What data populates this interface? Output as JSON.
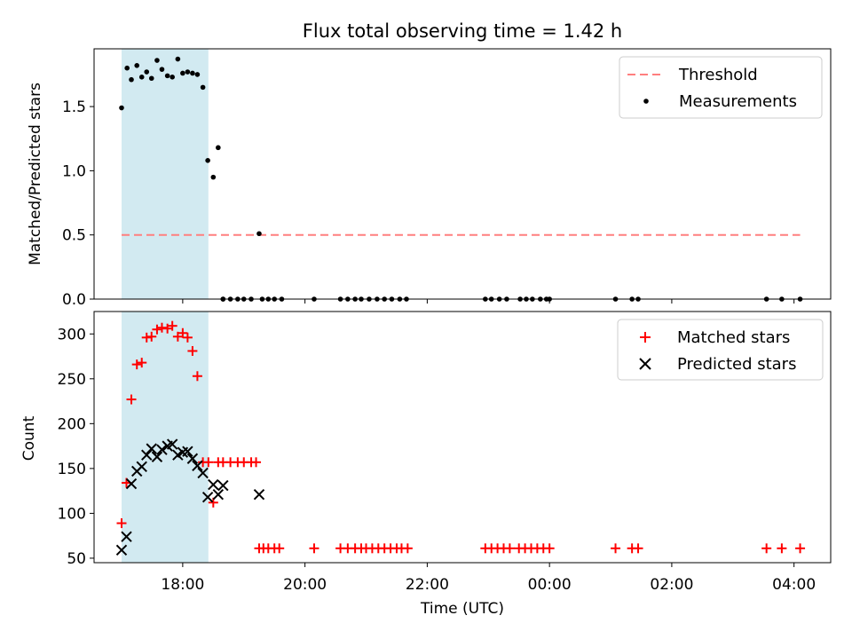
{
  "chart_data": [
    {
      "type": "scatter",
      "title": "Flux total observing time = 1.42 h",
      "ylabel": "Matched/Predicted stars",
      "xlabel": "",
      "ylim": [
        0,
        1.95
      ],
      "xlim": [
        16.55,
        28.6
      ],
      "x_unit": "hours UTC from 00:00 of first night (values > 24 are after midnight)",
      "yticks": [
        "0.0",
        "0.5",
        "1.0",
        "1.5"
      ],
      "highlight_span": {
        "from": 17.0,
        "to": 18.42,
        "color": "#add8e6"
      },
      "legend": {
        "placement": "top-right",
        "entries": [
          "Threshold",
          "Measurements"
        ]
      },
      "threshold": {
        "name": "Threshold",
        "value": 0.5,
        "x_from": 17.0,
        "x_to": 28.1,
        "color": "#ff7f7f",
        "style": "dashed"
      },
      "series": [
        {
          "name": "Measurements",
          "color": "#000000",
          "marker": "dot",
          "x": [
            17.0,
            17.09,
            17.16,
            17.25,
            17.33,
            17.41,
            17.49,
            17.58,
            17.66,
            17.75,
            17.83,
            17.92,
            18.0,
            18.08,
            18.16,
            18.24,
            18.33,
            18.41,
            18.5,
            18.58,
            18.66,
            19.25,
            18.66,
            18.78,
            18.9,
            19.0,
            19.12,
            19.3,
            19.4,
            19.5,
            19.62,
            20.15,
            20.58,
            20.7,
            20.82,
            20.92,
            21.05,
            21.18,
            21.3,
            21.42,
            21.55,
            21.66,
            22.95,
            23.05,
            23.18,
            23.3,
            23.52,
            23.62,
            23.72,
            23.85,
            23.95,
            24.0,
            25.08,
            25.35,
            25.45,
            27.55,
            27.8,
            28.1
          ],
          "y": [
            1.49,
            1.8,
            1.71,
            1.82,
            1.73,
            1.77,
            1.72,
            1.86,
            1.79,
            1.74,
            1.73,
            1.87,
            1.76,
            1.77,
            1.76,
            1.75,
            1.65,
            1.08,
            0.95,
            1.18,
            0.0,
            0.51,
            0.0,
            0.0,
            0.0,
            0.0,
            0.0,
            0.0,
            0.0,
            0.0,
            0.0,
            0.0,
            0.0,
            0.0,
            0.0,
            0.0,
            0.0,
            0.0,
            0.0,
            0.0,
            0.0,
            0.0,
            0.0,
            0.0,
            0.0,
            0.0,
            0.0,
            0.0,
            0.0,
            0.0,
            0.0,
            0.0,
            0.0,
            0.0,
            0.0,
            0.0,
            0.0,
            0.0
          ]
        }
      ]
    },
    {
      "type": "scatter",
      "title": "",
      "ylabel": "Count",
      "xlabel": "Time (UTC)",
      "ylim": [
        45,
        325
      ],
      "xlim": [
        16.55,
        28.6
      ],
      "yticks": [
        "50",
        "100",
        "150",
        "200",
        "250",
        "300"
      ],
      "xticks": [
        "18:00",
        "20:00",
        "22:00",
        "00:00",
        "02:00",
        "04:00"
      ],
      "highlight_span": {
        "from": 17.0,
        "to": 18.42,
        "color": "#add8e6"
      },
      "legend": {
        "placement": "top-right",
        "entries": [
          "Matched stars",
          "Predicted stars"
        ]
      },
      "series": [
        {
          "name": "Matched stars",
          "color": "#ff0000",
          "marker": "plus",
          "x": [
            17.0,
            17.08,
            17.16,
            17.25,
            17.33,
            17.41,
            17.49,
            17.58,
            17.66,
            17.75,
            17.83,
            17.92,
            18.0,
            18.08,
            18.16,
            18.24,
            18.33,
            18.42,
            18.5,
            18.58,
            18.66,
            18.78,
            18.9,
            19.0,
            19.12,
            19.2,
            19.25,
            19.32,
            19.4,
            19.5,
            19.58,
            20.15,
            20.58,
            20.7,
            20.82,
            20.92,
            21.0,
            21.1,
            21.2,
            21.3,
            21.4,
            21.5,
            21.58,
            21.68,
            22.95,
            23.05,
            23.15,
            23.25,
            23.35,
            23.5,
            23.6,
            23.7,
            23.8,
            23.9,
            24.0,
            25.08,
            25.35,
            25.45,
            27.55,
            27.8,
            28.1
          ],
          "y": [
            89,
            134,
            227,
            266,
            268,
            296,
            297,
            305,
            307,
            306,
            309,
            297,
            301,
            296,
            281,
            253,
            157,
            157,
            112,
            157,
            157,
            157,
            157,
            157,
            157,
            157,
            61,
            61,
            61,
            61,
            61,
            61,
            61,
            61,
            61,
            61,
            61,
            61,
            61,
            61,
            61,
            61,
            61,
            61,
            61,
            61,
            61,
            61,
            61,
            61,
            61,
            61,
            61,
            61,
            61,
            61,
            61,
            61,
            61,
            61,
            61
          ]
        },
        {
          "name": "Predicted stars",
          "color": "#000000",
          "marker": "x",
          "x": [
            17.0,
            17.08,
            17.16,
            17.25,
            17.33,
            17.41,
            17.49,
            17.58,
            17.66,
            17.75,
            17.83,
            17.92,
            18.0,
            18.08,
            18.16,
            18.24,
            18.33,
            18.41,
            18.5,
            18.58,
            18.66,
            19.25
          ],
          "y": [
            59,
            74,
            133,
            147,
            152,
            165,
            172,
            163,
            171,
            175,
            177,
            165,
            168,
            169,
            161,
            153,
            145,
            118,
            132,
            121,
            131,
            121
          ]
        }
      ]
    }
  ]
}
